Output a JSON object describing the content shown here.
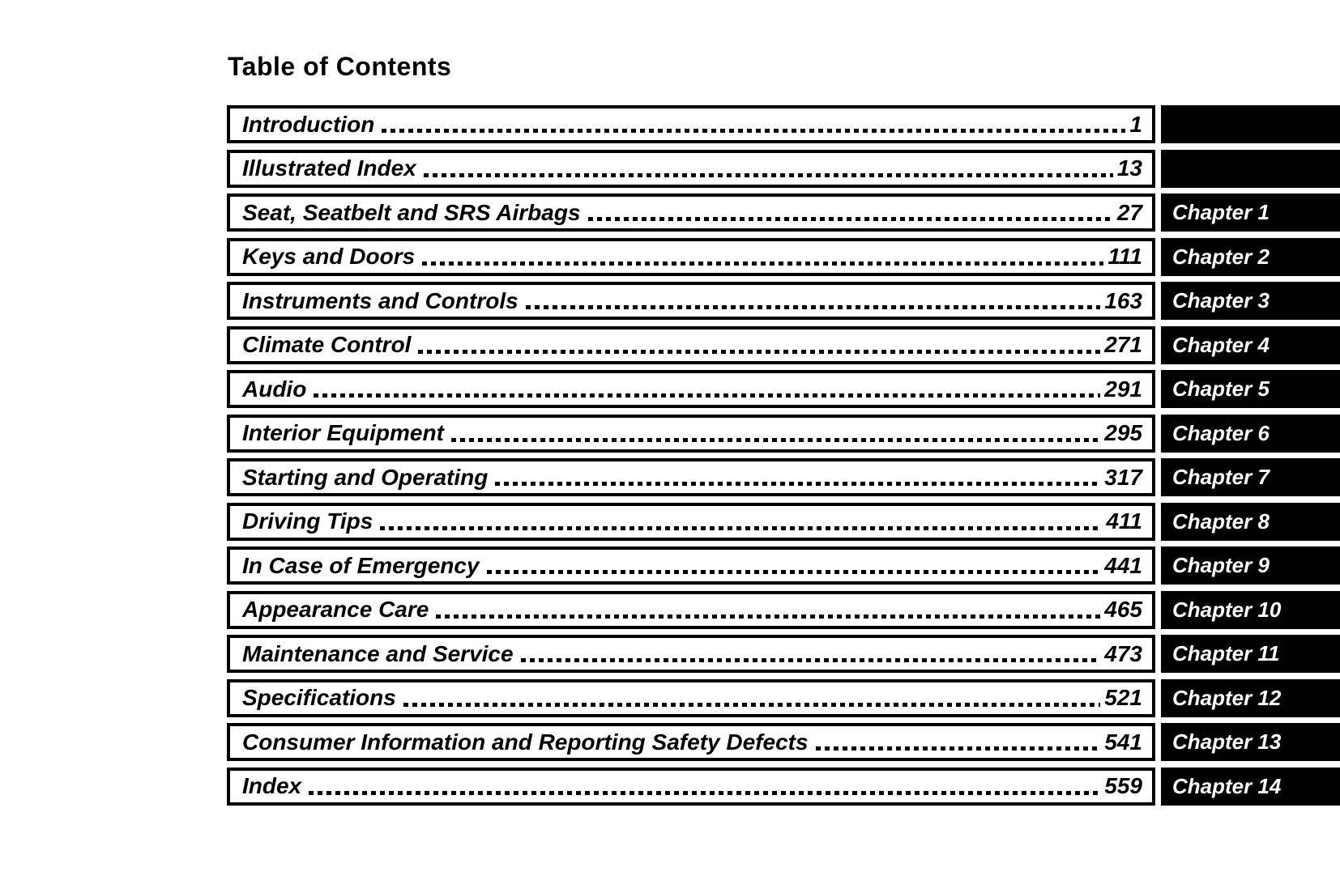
{
  "page": {
    "title": "Table of Contents"
  },
  "colors": {
    "ink": "#000000",
    "paper": "#ffffff",
    "chapter_text": "#ffffff"
  },
  "toc": {
    "rows": [
      {
        "title": "Introduction",
        "page": "1",
        "chapter": ""
      },
      {
        "title": "Illustrated Index",
        "page": "13",
        "chapter": ""
      },
      {
        "title": "Seat, Seatbelt and SRS Airbags",
        "page": "27",
        "chapter": "Chapter 1"
      },
      {
        "title": "Keys and Doors",
        "page": "111",
        "chapter": "Chapter 2"
      },
      {
        "title": "Instruments and Controls",
        "page": "163",
        "chapter": "Chapter 3"
      },
      {
        "title": "Climate Control",
        "page": "271",
        "chapter": "Chapter 4"
      },
      {
        "title": "Audio",
        "page": "291",
        "chapter": "Chapter 5"
      },
      {
        "title": "Interior Equipment",
        "page": "295",
        "chapter": "Chapter 6"
      },
      {
        "title": "Starting and Operating",
        "page": "317",
        "chapter": "Chapter 7"
      },
      {
        "title": "Driving Tips",
        "page": "411",
        "chapter": "Chapter 8"
      },
      {
        "title": "In Case of Emergency",
        "page": "441",
        "chapter": "Chapter 9"
      },
      {
        "title": "Appearance Care",
        "page": "465",
        "chapter": "Chapter 10"
      },
      {
        "title": "Maintenance and Service",
        "page": "473",
        "chapter": "Chapter 11"
      },
      {
        "title": "Specifications",
        "page": "521",
        "chapter": "Chapter 12"
      },
      {
        "title": "Consumer Information and Reporting Safety Defects",
        "page": "541",
        "chapter": "Chapter 13"
      },
      {
        "title": "Index",
        "page": "559",
        "chapter": "Chapter 14"
      }
    ]
  }
}
